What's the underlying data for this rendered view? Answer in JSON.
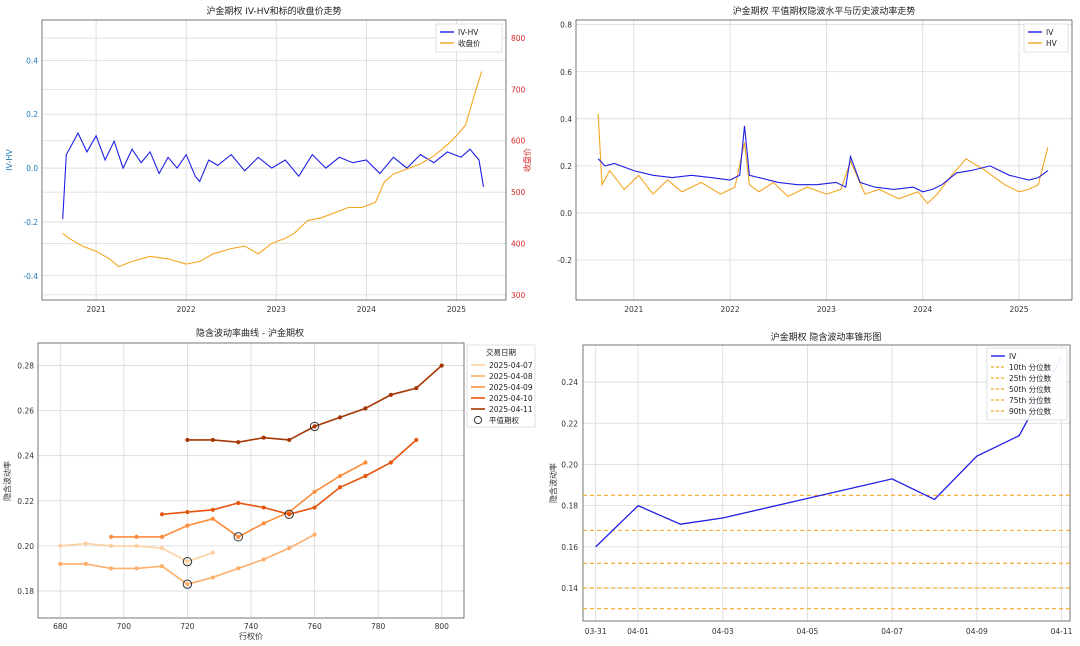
{
  "chart_data": [
    {
      "type": "line",
      "title": "沪金期权 IV-HV和标的收盘价走势",
      "xlabel": "",
      "ylabel": "IV-HV",
      "ylabel_right": "收盘价",
      "x_ticks": [
        "2021",
        "2022",
        "2023",
        "2024",
        "2025"
      ],
      "xlim": [
        2020.4,
        2025.55
      ],
      "ylim": [
        -0.49,
        0.55
      ],
      "ylim_right": [
        290,
        835
      ],
      "y_ticks": [
        -0.4,
        -0.2,
        0.0,
        0.2,
        0.4
      ],
      "y_ticks_right": [
        300,
        400,
        500,
        600,
        700,
        800
      ],
      "legend": "top-right",
      "grid": true,
      "series": [
        {
          "name": "IV-HV",
          "color": "#1f1fe6",
          "axis": "left",
          "x": [
            2020.63,
            2020.67,
            2020.72,
            2020.8,
            2020.9,
            2021.0,
            2021.1,
            2021.2,
            2021.3,
            2021.4,
            2021.5,
            2021.6,
            2021.7,
            2021.8,
            2021.9,
            2022.0,
            2022.1,
            2022.15,
            2022.25,
            2022.35,
            2022.5,
            2022.65,
            2022.8,
            2022.95,
            2023.1,
            2023.25,
            2023.4,
            2023.55,
            2023.7,
            2023.85,
            2024.0,
            2024.15,
            2024.3,
            2024.45,
            2024.6,
            2024.75,
            2024.9,
            2025.05,
            2025.15,
            2025.25,
            2025.3
          ],
          "values": [
            -0.19,
            0.05,
            0.08,
            0.13,
            0.06,
            0.12,
            0.03,
            0.1,
            0.0,
            0.07,
            0.02,
            0.06,
            -0.02,
            0.04,
            0.0,
            0.05,
            -0.03,
            -0.05,
            0.03,
            0.01,
            0.05,
            -0.01,
            0.04,
            0.0,
            0.03,
            -0.03,
            0.05,
            0.0,
            0.04,
            0.02,
            0.03,
            -0.02,
            0.04,
            0.0,
            0.05,
            0.02,
            0.06,
            0.04,
            0.07,
            0.03,
            -0.07
          ]
        },
        {
          "name": "收盘价",
          "color": "#f5a623",
          "axis": "right",
          "x": [
            2020.63,
            2020.7,
            2020.85,
            2021.0,
            2021.15,
            2021.25,
            2021.4,
            2021.6,
            2021.8,
            2022.0,
            2022.15,
            2022.3,
            2022.5,
            2022.65,
            2022.8,
            2022.95,
            2023.1,
            2023.2,
            2023.35,
            2023.5,
            2023.65,
            2023.8,
            2023.95,
            2024.1,
            2024.2,
            2024.3,
            2024.45,
            2024.6,
            2024.75,
            2024.85,
            2024.95,
            2025.1,
            2025.2,
            2025.28
          ],
          "values": [
            420,
            410,
            395,
            385,
            370,
            355,
            365,
            375,
            370,
            360,
            365,
            380,
            390,
            395,
            380,
            400,
            410,
            420,
            445,
            450,
            460,
            470,
            470,
            480,
            520,
            535,
            545,
            555,
            570,
            585,
            600,
            630,
            690,
            735
          ]
        }
      ]
    },
    {
      "type": "line",
      "title": "沪金期权 平值期权隐波水平与历史波动率走势",
      "xlabel": "",
      "ylabel": "",
      "x_ticks": [
        "2021",
        "2022",
        "2023",
        "2024",
        "2025"
      ],
      "xlim": [
        2020.4,
        2025.55
      ],
      "ylim": [
        -0.37,
        0.82
      ],
      "y_ticks": [
        -0.2,
        0.0,
        0.2,
        0.4,
        0.6,
        0.8
      ],
      "legend": "top-right",
      "grid": true,
      "series": [
        {
          "name": "IV",
          "color": "#1f1fe6",
          "x": [
            2020.63,
            2020.7,
            2020.8,
            2021.0,
            2021.2,
            2021.4,
            2021.6,
            2021.8,
            2022.0,
            2022.1,
            2022.15,
            2022.2,
            2022.3,
            2022.5,
            2022.7,
            2022.9,
            2023.1,
            2023.2,
            2023.25,
            2023.35,
            2023.5,
            2023.7,
            2023.9,
            2024.0,
            2024.1,
            2024.2,
            2024.35,
            2024.5,
            2024.7,
            2024.9,
            2025.0,
            2025.1,
            2025.2,
            2025.3
          ],
          "values": [
            0.23,
            0.2,
            0.21,
            0.18,
            0.16,
            0.15,
            0.16,
            0.15,
            0.14,
            0.16,
            0.37,
            0.16,
            0.15,
            0.13,
            0.12,
            0.12,
            0.13,
            0.11,
            0.24,
            0.13,
            0.11,
            0.1,
            0.11,
            0.09,
            0.1,
            0.12,
            0.17,
            0.18,
            0.2,
            0.16,
            0.15,
            0.14,
            0.15,
            0.18
          ]
        },
        {
          "name": "HV",
          "color": "#f5a623",
          "x": [
            2020.63,
            2020.67,
            2020.75,
            2020.9,
            2021.05,
            2021.2,
            2021.35,
            2021.5,
            2021.7,
            2021.9,
            2022.05,
            2022.15,
            2022.2,
            2022.3,
            2022.45,
            2022.6,
            2022.8,
            2023.0,
            2023.15,
            2023.25,
            2023.4,
            2023.55,
            2023.75,
            2023.95,
            2024.05,
            2024.15,
            2024.3,
            2024.45,
            2024.65,
            2024.85,
            2025.0,
            2025.1,
            2025.2,
            2025.3
          ],
          "values": [
            0.42,
            0.12,
            0.18,
            0.1,
            0.16,
            0.08,
            0.14,
            0.09,
            0.13,
            0.08,
            0.11,
            0.3,
            0.12,
            0.09,
            0.13,
            0.07,
            0.11,
            0.08,
            0.1,
            0.22,
            0.08,
            0.1,
            0.06,
            0.09,
            0.04,
            0.08,
            0.16,
            0.23,
            0.18,
            0.12,
            0.09,
            0.1,
            0.12,
            0.28
          ]
        }
      ]
    },
    {
      "type": "line",
      "title": "隐含波动率曲线 - 沪金期权",
      "xlabel": "行权价",
      "ylabel": "隐含波动率",
      "x_ticks": [
        "680",
        "700",
        "720",
        "740",
        "760",
        "780",
        "800"
      ],
      "y_ticks": [
        "0.18",
        "0.20",
        "0.22",
        "0.24",
        "0.26",
        "0.28"
      ],
      "xlim": [
        673,
        807
      ],
      "ylim": [
        0.168,
        0.29
      ],
      "grid": true,
      "legend": "top-right",
      "legend_title": "交易日期",
      "atm_label": "平值期权",
      "series": [
        {
          "name": "2025-04-07",
          "color": "#fdd0a2",
          "x": [
            680,
            688,
            696,
            704,
            712,
            720,
            728
          ],
          "values": [
            0.2,
            0.201,
            0.2,
            0.2,
            0.199,
            0.193,
            0.197
          ],
          "atm": {
            "x": 720,
            "y": 0.193
          }
        },
        {
          "name": "2025-04-08",
          "color": "#fdae6b",
          "x": [
            680,
            688,
            696,
            704,
            712,
            720,
            728,
            736,
            744,
            752,
            760
          ],
          "values": [
            0.192,
            0.192,
            0.19,
            0.19,
            0.191,
            0.183,
            0.186,
            0.19,
            0.194,
            0.199,
            0.205
          ],
          "atm": {
            "x": 720,
            "y": 0.183
          }
        },
        {
          "name": "2025-04-09",
          "color": "#fd8d3c",
          "x": [
            696,
            704,
            712,
            720,
            728,
            736,
            744,
            752,
            760,
            768,
            776
          ],
          "values": [
            0.204,
            0.204,
            0.204,
            0.209,
            0.212,
            0.204,
            0.21,
            0.215,
            0.224,
            0.231,
            0.237
          ],
          "atm": {
            "x": 736,
            "y": 0.204
          }
        },
        {
          "name": "2025-04-10",
          "color": "#e6550d",
          "x": [
            712,
            720,
            728,
            736,
            744,
            752,
            760,
            768,
            776,
            784,
            792
          ],
          "values": [
            0.214,
            0.215,
            0.216,
            0.219,
            0.217,
            0.214,
            0.217,
            0.226,
            0.231,
            0.237,
            0.247
          ],
          "atm": {
            "x": 752,
            "y": 0.214
          }
        },
        {
          "name": "2025-04-11",
          "color": "#a63603",
          "x": [
            720,
            728,
            736,
            744,
            752,
            760,
            768,
            776,
            784,
            792,
            800
          ],
          "values": [
            0.247,
            0.247,
            0.246,
            0.248,
            0.247,
            0.253,
            0.257,
            0.261,
            0.267,
            0.27,
            0.28
          ],
          "atm": {
            "x": 760,
            "y": 0.253
          }
        }
      ]
    },
    {
      "type": "line",
      "title": "沪金期权 隐含波动率锥形图",
      "xlabel": "",
      "ylabel": "隐含波动率",
      "x_ticks": [
        "03-31",
        "04-01",
        "04-03",
        "04-05",
        "04-07",
        "04-09",
        "04-11"
      ],
      "y_ticks": [
        "0.14",
        "0.16",
        "0.18",
        "0.20",
        "0.22",
        "0.24"
      ],
      "xlim": [
        -0.3,
        11.2
      ],
      "ylim": [
        0.124,
        0.258
      ],
      "grid": true,
      "legend": "top-right",
      "series": [
        {
          "name": "IV",
          "color": "#1f1fe6",
          "x": [
            0,
            1,
            2,
            3,
            7,
            8,
            9,
            10,
            11
          ],
          "values": [
            0.16,
            0.18,
            0.171,
            0.174,
            0.193,
            0.183,
            0.204,
            0.214,
            0.252
          ]
        }
      ],
      "percentiles": [
        {
          "name": "10th 分位数",
          "value": 0.13,
          "color": "#f5a623"
        },
        {
          "name": "25th 分位数",
          "value": 0.14,
          "color": "#f5a623"
        },
        {
          "name": "50th 分位数",
          "value": 0.152,
          "color": "#f5a623"
        },
        {
          "name": "75th 分位数",
          "value": 0.168,
          "color": "#f5a623"
        },
        {
          "name": "90th 分位数",
          "value": 0.185,
          "color": "#f5a623"
        }
      ]
    }
  ]
}
